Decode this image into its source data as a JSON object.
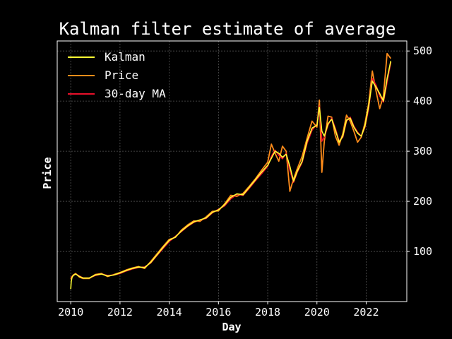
{
  "chart_data": {
    "type": "line",
    "title": "Kalman filter estimate of average",
    "xlabel": "Day",
    "ylabel": "Price",
    "xlim": [
      2009.45,
      2023.65
    ],
    "ylim": [
      0,
      520
    ],
    "x_ticks": [
      2010,
      2012,
      2014,
      2016,
      2018,
      2020,
      2022
    ],
    "x_tick_labels": [
      "2010",
      "2012",
      "2014",
      "2016",
      "2018",
      "2020",
      "2022"
    ],
    "y_ticks": [
      100,
      200,
      300,
      400,
      500
    ],
    "y_tick_labels": [
      "100",
      "200",
      "300",
      "400",
      "500"
    ],
    "y_axis_side": "right",
    "grid": true,
    "legend_position": "top-left",
    "background": "#000000",
    "series": [
      {
        "name": "Kalman",
        "color": "#ffff33",
        "x": [
          2010.0,
          2010.02,
          2010.05,
          2010.1,
          2010.2,
          2010.35,
          2010.5,
          2010.75,
          2011.0,
          2011.25,
          2011.5,
          2011.75,
          2012.0,
          2012.25,
          2012.5,
          2012.75,
          2013.0,
          2013.25,
          2013.5,
          2013.75,
          2014.0,
          2014.25,
          2014.5,
          2014.75,
          2015.0,
          2015.25,
          2015.5,
          2015.75,
          2016.0,
          2016.25,
          2016.5,
          2016.75,
          2017.0,
          2017.25,
          2017.5,
          2017.75,
          2018.0,
          2018.15,
          2018.3,
          2018.45,
          2018.6,
          2018.75,
          2018.9,
          2019.05,
          2019.2,
          2019.4,
          2019.6,
          2019.8,
          2020.0,
          2020.1,
          2020.2,
          2020.3,
          2020.45,
          2020.6,
          2020.75,
          2020.9,
          2021.05,
          2021.2,
          2021.35,
          2021.5,
          2021.65,
          2021.8,
          2021.95,
          2022.1,
          2022.25,
          2022.4,
          2022.55,
          2022.7,
          2022.85,
          2023.0
        ],
        "values": [
          25,
          40,
          48,
          52,
          55,
          50,
          47,
          47,
          53,
          55,
          51,
          53,
          57,
          62,
          66,
          69,
          68,
          78,
          93,
          108,
          122,
          129,
          141,
          151,
          159,
          163,
          167,
          178,
          183,
          193,
          208,
          215,
          213,
          228,
          243,
          258,
          272,
          286,
          300,
          296,
          288,
          294,
          270,
          240,
          260,
          280,
          320,
          346,
          352,
          388,
          340,
          330,
          355,
          364,
          342,
          318,
          330,
          362,
          366,
          348,
          336,
          330,
          350,
          390,
          440,
          428,
          415,
          400,
          445,
          480
        ]
      },
      {
        "name": "Price",
        "color": "#ff8c1a",
        "x": [
          2010.0,
          2010.02,
          2010.05,
          2010.1,
          2010.2,
          2010.35,
          2010.5,
          2010.75,
          2011.0,
          2011.25,
          2011.5,
          2011.75,
          2012.0,
          2012.25,
          2012.5,
          2012.75,
          2013.0,
          2013.25,
          2013.5,
          2013.75,
          2014.0,
          2014.25,
          2014.5,
          2014.75,
          2015.0,
          2015.25,
          2015.5,
          2015.75,
          2016.0,
          2016.25,
          2016.5,
          2016.75,
          2017.0,
          2017.25,
          2017.5,
          2017.75,
          2018.0,
          2018.15,
          2018.3,
          2018.45,
          2018.6,
          2018.75,
          2018.9,
          2019.05,
          2019.2,
          2019.4,
          2019.6,
          2019.8,
          2020.0,
          2020.1,
          2020.2,
          2020.3,
          2020.45,
          2020.6,
          2020.75,
          2020.9,
          2021.05,
          2021.2,
          2021.35,
          2021.5,
          2021.65,
          2021.8,
          2021.95,
          2022.1,
          2022.25,
          2022.4,
          2022.55,
          2022.7,
          2022.85,
          2023.0
        ],
        "values": [
          45,
          48,
          50,
          53,
          56,
          49,
          46,
          46,
          54,
          56,
          50,
          54,
          58,
          63,
          67,
          70,
          66,
          80,
          95,
          110,
          124,
          128,
          143,
          153,
          161,
          160,
          169,
          180,
          181,
          195,
          212,
          210,
          216,
          230,
          245,
          262,
          278,
          314,
          296,
          280,
          310,
          300,
          220,
          245,
          265,
          290,
          326,
          360,
          348,
          402,
          258,
          320,
          370,
          368,
          330,
          312,
          335,
          372,
          360,
          340,
          318,
          328,
          356,
          395,
          460,
          420,
          385,
          410,
          495,
          485
        ]
      },
      {
        "name": "30-day MA",
        "color": "#e8102a",
        "x": [
          2010.0,
          2010.02,
          2010.05,
          2010.1,
          2010.2,
          2010.35,
          2010.5,
          2010.75,
          2011.0,
          2011.25,
          2011.5,
          2011.75,
          2012.0,
          2012.25,
          2012.5,
          2012.75,
          2013.0,
          2013.25,
          2013.5,
          2013.75,
          2014.0,
          2014.25,
          2014.5,
          2014.75,
          2015.0,
          2015.25,
          2015.5,
          2015.75,
          2016.0,
          2016.25,
          2016.5,
          2016.75,
          2017.0,
          2017.25,
          2017.5,
          2017.75,
          2018.0,
          2018.15,
          2018.3,
          2018.45,
          2018.6,
          2018.75,
          2018.9,
          2019.05,
          2019.2,
          2019.4,
          2019.6,
          2019.8,
          2020.0,
          2020.1,
          2020.2,
          2020.3,
          2020.45,
          2020.6,
          2020.75,
          2020.9,
          2021.05,
          2021.2,
          2021.35,
          2021.5,
          2021.65,
          2021.8,
          2021.95,
          2022.1,
          2022.25,
          2022.4,
          2022.55,
          2022.7,
          2022.85,
          2023.0
        ],
        "values": [
          45,
          47,
          49,
          52,
          55,
          51,
          47,
          47,
          52,
          55,
          52,
          53,
          56,
          61,
          65,
          68,
          69,
          77,
          92,
          106,
          120,
          130,
          140,
          150,
          158,
          163,
          166,
          177,
          184,
          191,
          205,
          214,
          212,
          226,
          241,
          255,
          270,
          290,
          302,
          292,
          285,
          296,
          262,
          238,
          258,
          278,
          316,
          342,
          354,
          390,
          320,
          328,
          352,
          366,
          345,
          320,
          328,
          360,
          368,
          350,
          338,
          330,
          348,
          385,
          445,
          432,
          410,
          398,
          438,
          478
        ]
      }
    ]
  }
}
